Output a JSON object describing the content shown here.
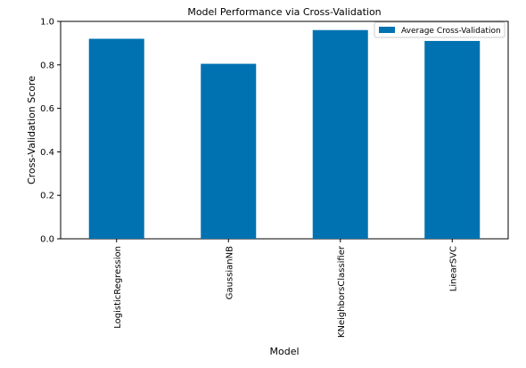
{
  "chart_data": {
    "type": "bar",
    "title": "Model Performance via Cross-Validation",
    "xlabel": "Model",
    "ylabel": "Cross-Validation Score",
    "categories": [
      "LogisticRegression",
      "GaussianNB",
      "KNeighborsClassifier",
      "LinearSVC"
    ],
    "series": [
      {
        "name": "Average Cross-Validation",
        "values": [
          0.92,
          0.805,
          0.96,
          0.91
        ],
        "color": "#0072b2"
      }
    ],
    "ylim": [
      0,
      1.0
    ],
    "yticks": [
      "0.0",
      "0.2",
      "0.4",
      "0.6",
      "0.8",
      "1.0"
    ],
    "grid": false,
    "legend_position": "top-right"
  }
}
